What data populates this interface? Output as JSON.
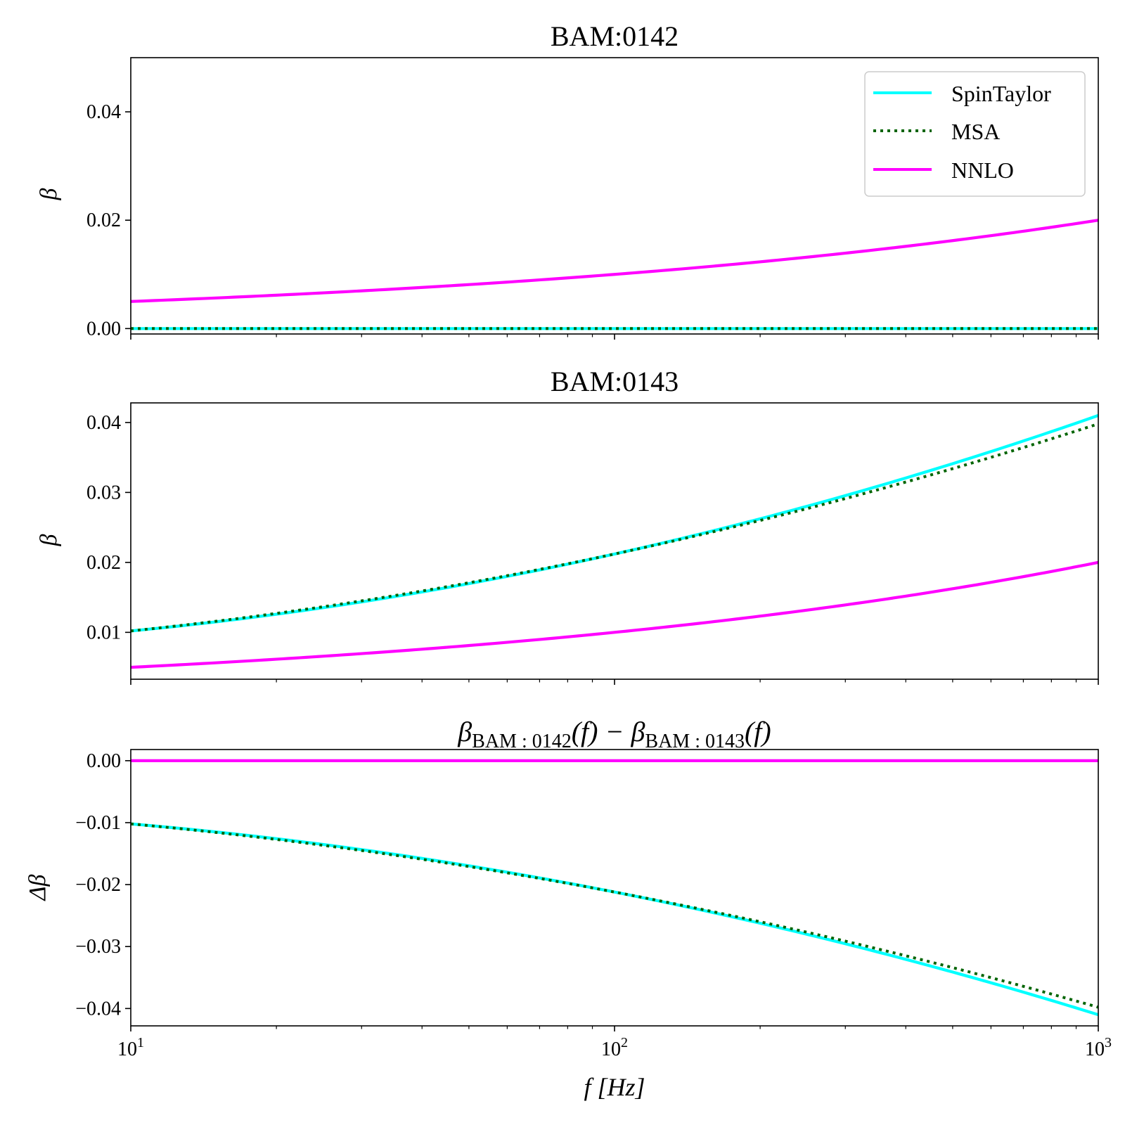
{
  "chart_data": [
    {
      "type": "line",
      "title": "BAM:0142",
      "ylabel": "β",
      "xlabel": "",
      "xscale": "log",
      "xlim": [
        10,
        1000
      ],
      "ylim": [
        -0.001,
        0.05
      ],
      "yticks": [
        0.0,
        0.02,
        0.04
      ],
      "ytick_labels": [
        "0.00",
        "0.02",
        "0.04"
      ],
      "legend": {
        "position": "top-right",
        "entries": [
          "SpinTaylor",
          "MSA",
          "NNLO"
        ]
      },
      "series": [
        {
          "name": "SpinTaylor",
          "color": "#00ffff",
          "style": "solid",
          "x": [
            10,
            1000
          ],
          "y": [
            0.0,
            0.0
          ],
          "curve": "const"
        },
        {
          "name": "MSA",
          "color": "#006400",
          "style": "dotted",
          "x": [
            10,
            1000
          ],
          "y": [
            0.0,
            0.0
          ],
          "curve": "const"
        },
        {
          "name": "NNLO",
          "color": "#ff00ff",
          "style": "solid",
          "x": [
            10,
            1000
          ],
          "y": [
            0.005,
            0.02
          ],
          "curve": "power"
        }
      ]
    },
    {
      "type": "line",
      "title": "BAM:0143",
      "ylabel": "β",
      "xlabel": "",
      "xscale": "log",
      "xlim": [
        10,
        1000
      ],
      "ylim": [
        0.0033,
        0.0428
      ],
      "yticks": [
        0.01,
        0.02,
        0.03,
        0.04
      ],
      "ytick_labels": [
        "0.01",
        "0.02",
        "0.03",
        "0.04"
      ],
      "series": [
        {
          "name": "SpinTaylor",
          "color": "#00ffff",
          "style": "solid",
          "x": [
            10,
            100,
            1000
          ],
          "y": [
            0.0102,
            0.0212,
            0.041
          ],
          "curve": "quad"
        },
        {
          "name": "MSA",
          "color": "#006400",
          "style": "dotted",
          "x": [
            10,
            100,
            1000
          ],
          "y": [
            0.0102,
            0.0212,
            0.0398
          ],
          "curve": "quad"
        },
        {
          "name": "NNLO",
          "color": "#ff00ff",
          "style": "solid",
          "x": [
            10,
            1000
          ],
          "y": [
            0.005,
            0.02
          ],
          "curve": "power"
        }
      ]
    },
    {
      "type": "line",
      "title": "β_BAM:0142(f) − β_BAM:0143(f)",
      "title_parts": {
        "a": "β",
        "a_sub": "BAM : 0142",
        "b": "(f) − β",
        "b_sub": "BAM : 0143",
        "c": "(f)"
      },
      "ylabel": "Δβ",
      "xlabel": "f [Hz]",
      "xscale": "log",
      "xlim": [
        10,
        1000
      ],
      "ylim": [
        -0.0428,
        0.0018
      ],
      "yticks": [
        0.0,
        -0.01,
        -0.02,
        -0.03,
        -0.04
      ],
      "ytick_labels": [
        "0.00",
        "−0.01",
        "−0.02",
        "−0.03",
        "−0.04"
      ],
      "xticks": [
        10,
        100,
        1000
      ],
      "xtick_labels": [
        {
          "base": "10",
          "exp": "1"
        },
        {
          "base": "10",
          "exp": "2"
        },
        {
          "base": "10",
          "exp": "3"
        }
      ],
      "series": [
        {
          "name": "SpinTaylor",
          "color": "#00ffff",
          "style": "solid",
          "x": [
            10,
            100,
            1000
          ],
          "y": [
            -0.0102,
            -0.0212,
            -0.041
          ],
          "curve": "quad"
        },
        {
          "name": "MSA",
          "color": "#006400",
          "style": "dotted",
          "x": [
            10,
            100,
            1000
          ],
          "y": [
            -0.0102,
            -0.0212,
            -0.0398
          ],
          "curve": "quad"
        },
        {
          "name": "NNLO",
          "color": "#ff00ff",
          "style": "solid",
          "x": [
            10,
            1000
          ],
          "y": [
            0.0,
            0.0
          ],
          "curve": "const"
        }
      ]
    }
  ]
}
